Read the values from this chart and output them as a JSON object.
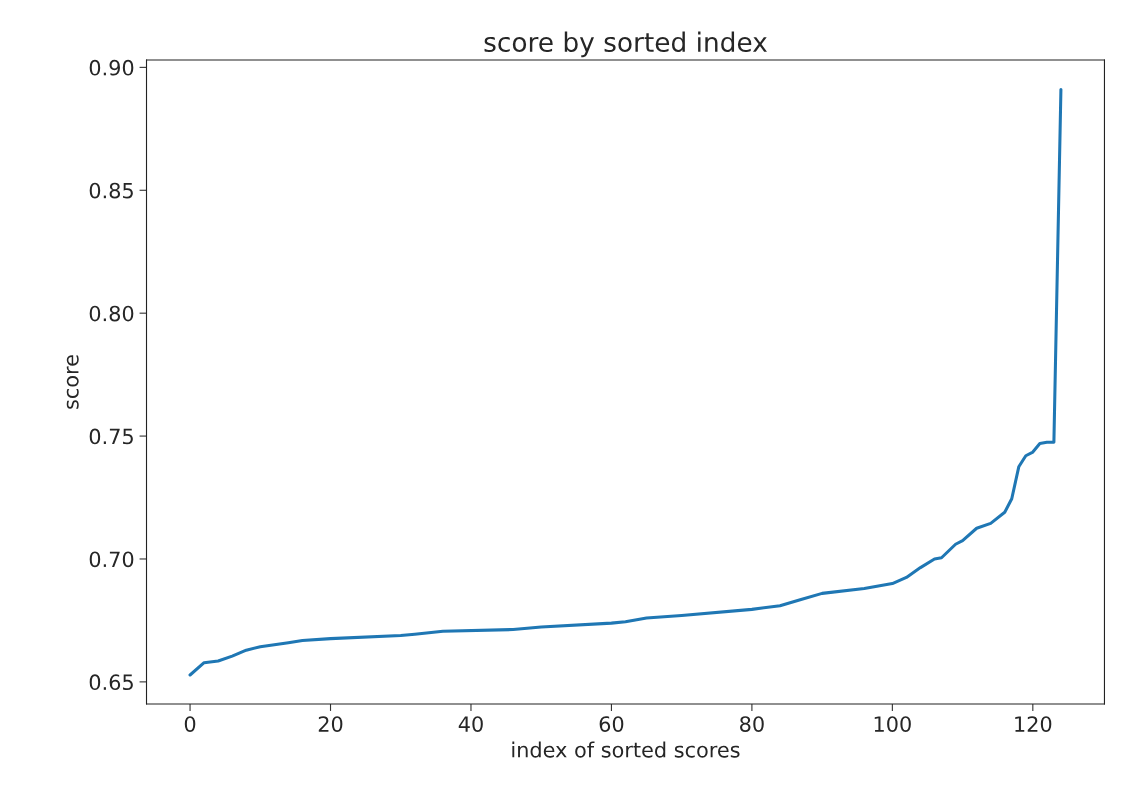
{
  "chart_data": {
    "type": "line",
    "title": "score by sorted index",
    "xlabel": "index of sorted scores",
    "ylabel": "score",
    "series": [
      {
        "color": "#1f77b4",
        "x": [
          0,
          2,
          4,
          6,
          8,
          10,
          14,
          16,
          20,
          30,
          32,
          36,
          46,
          50,
          60,
          62,
          65,
          70,
          80,
          84,
          87,
          90,
          96,
          100,
          102,
          104,
          106,
          107,
          109,
          110,
          112,
          114,
          116,
          117,
          118,
          119,
          120,
          121,
          122,
          123,
          124
        ],
        "values": [
          0.6528,
          0.6578,
          0.6585,
          0.6605,
          0.6629,
          0.6643,
          0.6659,
          0.6668,
          0.6676,
          0.6689,
          0.6694,
          0.6706,
          0.6713,
          0.6723,
          0.6739,
          0.6745,
          0.676,
          0.677,
          0.6795,
          0.681,
          0.6835,
          0.686,
          0.688,
          0.69,
          0.6925,
          0.6965,
          0.7,
          0.7005,
          0.706,
          0.7075,
          0.7125,
          0.7145,
          0.719,
          0.7245,
          0.7375,
          0.742,
          0.7435,
          0.747,
          0.7475,
          0.7475,
          0.891
        ]
      }
    ],
    "xlim": [
      -6.2,
      130.2
    ],
    "ylim": [
      0.641,
      0.903
    ],
    "xticks": [
      0,
      20,
      40,
      60,
      80,
      100,
      120
    ],
    "yticks": [
      {
        "value": 0.65,
        "label": "0.65"
      },
      {
        "value": 0.7,
        "label": "0.70"
      },
      {
        "value": 0.75,
        "label": "0.75"
      },
      {
        "value": 0.8,
        "label": "0.80"
      },
      {
        "value": 0.85,
        "label": "0.85"
      },
      {
        "value": 0.9,
        "label": "0.90"
      }
    ],
    "grid": false,
    "legend": false,
    "marker": "none",
    "line_style": "solid"
  }
}
